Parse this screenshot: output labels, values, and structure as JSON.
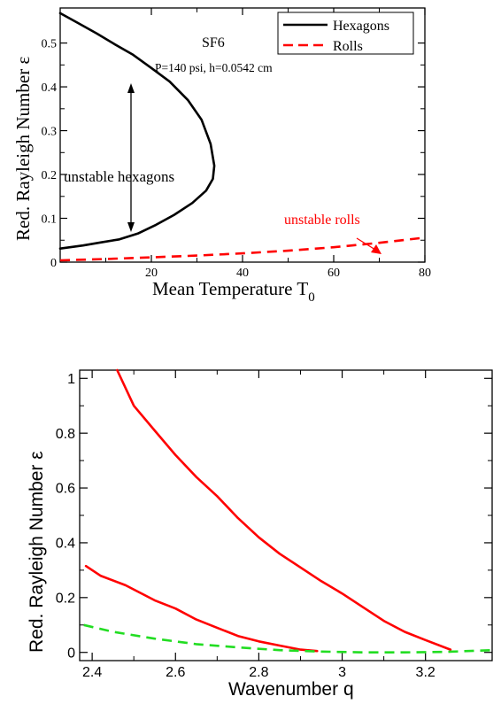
{
  "chart_data": [
    {
      "type": "line",
      "xlabel": "Mean Temperature T",
      "xlabel_subscript": "0",
      "ylabel": "Red. Rayleigh Number  ε",
      "xlim": [
        0,
        80
      ],
      "ylim": [
        0,
        0.58
      ],
      "xticks": [
        20,
        40,
        60,
        80
      ],
      "yticks": [
        0,
        0.1,
        0.2,
        0.3,
        0.4,
        0.5
      ],
      "tick_labels_x": [
        "20",
        "40",
        "60",
        "80"
      ],
      "tick_labels_y": [
        "0",
        "0.1",
        "0.2",
        "0.3",
        "0.4",
        "0.5"
      ],
      "grid": false,
      "legend": {
        "placement": "top-right",
        "entries": [
          "Hexagons",
          "Rolls"
        ]
      },
      "annotations": {
        "gas": "SF6",
        "params": "P=140 psi, h=0.0542 cm",
        "hex_label": "unstable hexagons",
        "rolls_label": "unstable rolls"
      },
      "series": [
        {
          "name": "Hexagons",
          "color": "#000000",
          "dash": "solid",
          "points": [
            [
              0,
              0.568
            ],
            [
              4,
              0.545
            ],
            [
              8,
              0.522
            ],
            [
              12,
              0.497
            ],
            [
              16,
              0.473
            ],
            [
              20,
              0.443
            ],
            [
              24,
              0.412
            ],
            [
              28,
              0.37
            ],
            [
              31,
              0.325
            ],
            [
              33,
              0.27
            ],
            [
              33.8,
              0.22
            ],
            [
              33.5,
              0.19
            ],
            [
              32,
              0.163
            ],
            [
              29,
              0.135
            ],
            [
              25,
              0.108
            ],
            [
              21,
              0.085
            ],
            [
              17,
              0.065
            ],
            [
              13,
              0.052
            ],
            [
              9,
              0.045
            ],
            [
              5,
              0.038
            ],
            [
              0,
              0.031
            ]
          ]
        },
        {
          "name": "Rolls",
          "color": "#ff0000",
          "dash": "dashed",
          "points": [
            [
              0,
              0.004
            ],
            [
              10,
              0.007
            ],
            [
              20,
              0.011
            ],
            [
              30,
              0.015
            ],
            [
              40,
              0.02
            ],
            [
              50,
              0.026
            ],
            [
              60,
              0.034
            ],
            [
              70,
              0.044
            ],
            [
              80,
              0.056
            ]
          ]
        }
      ]
    },
    {
      "type": "line",
      "xlabel": "Wavenumber q",
      "ylabel": "Red. Rayleigh Number  ε",
      "xlim": [
        2.37,
        3.36
      ],
      "ylim": [
        -0.03,
        1.03
      ],
      "xticks": [
        2.4,
        2.6,
        2.8,
        3.0,
        3.2
      ],
      "yticks": [
        0,
        0.2,
        0.4,
        0.6,
        0.8,
        1.0
      ],
      "tick_labels_x": [
        "2.4",
        "2.6",
        "2.8",
        "3",
        "3.2"
      ],
      "tick_labels_y": [
        "0",
        "0.2",
        "0.4",
        "0.6",
        "0.8",
        "1"
      ],
      "grid": false,
      "series": [
        {
          "color": "#ff0000",
          "dash": "solid",
          "points": [
            [
              2.46,
              1.03
            ],
            [
              2.5,
              0.9
            ],
            [
              2.55,
              0.81
            ],
            [
              2.6,
              0.72
            ],
            [
              2.65,
              0.64
            ],
            [
              2.7,
              0.57
            ],
            [
              2.75,
              0.49
            ],
            [
              2.8,
              0.42
            ],
            [
              2.85,
              0.36
            ],
            [
              2.9,
              0.31
            ],
            [
              2.95,
              0.26
            ],
            [
              3.0,
              0.215
            ],
            [
              3.05,
              0.165
            ],
            [
              3.1,
              0.115
            ],
            [
              3.15,
              0.075
            ],
            [
              3.2,
              0.045
            ],
            [
              3.26,
              0.01
            ]
          ]
        },
        {
          "color": "#ff0000",
          "dash": "solid",
          "points": [
            [
              2.385,
              0.315
            ],
            [
              2.42,
              0.28
            ],
            [
              2.48,
              0.245
            ],
            [
              2.55,
              0.19
            ],
            [
              2.6,
              0.16
            ],
            [
              2.65,
              0.12
            ],
            [
              2.7,
              0.09
            ],
            [
              2.75,
              0.06
            ],
            [
              2.8,
              0.04
            ],
            [
              2.85,
              0.025
            ],
            [
              2.9,
              0.01
            ],
            [
              2.94,
              0.005
            ]
          ]
        },
        {
          "color": "#22dd22",
          "dash": "dashed",
          "points": [
            [
              2.38,
              0.1
            ],
            [
              2.45,
              0.075
            ],
            [
              2.55,
              0.05
            ],
            [
              2.65,
              0.03
            ],
            [
              2.75,
              0.018
            ],
            [
              2.85,
              0.008
            ],
            [
              2.95,
              0.003
            ],
            [
              3.05,
              0.0
            ],
            [
              3.15,
              0.0
            ],
            [
              3.25,
              0.002
            ],
            [
              3.36,
              0.008
            ]
          ]
        }
      ]
    }
  ]
}
